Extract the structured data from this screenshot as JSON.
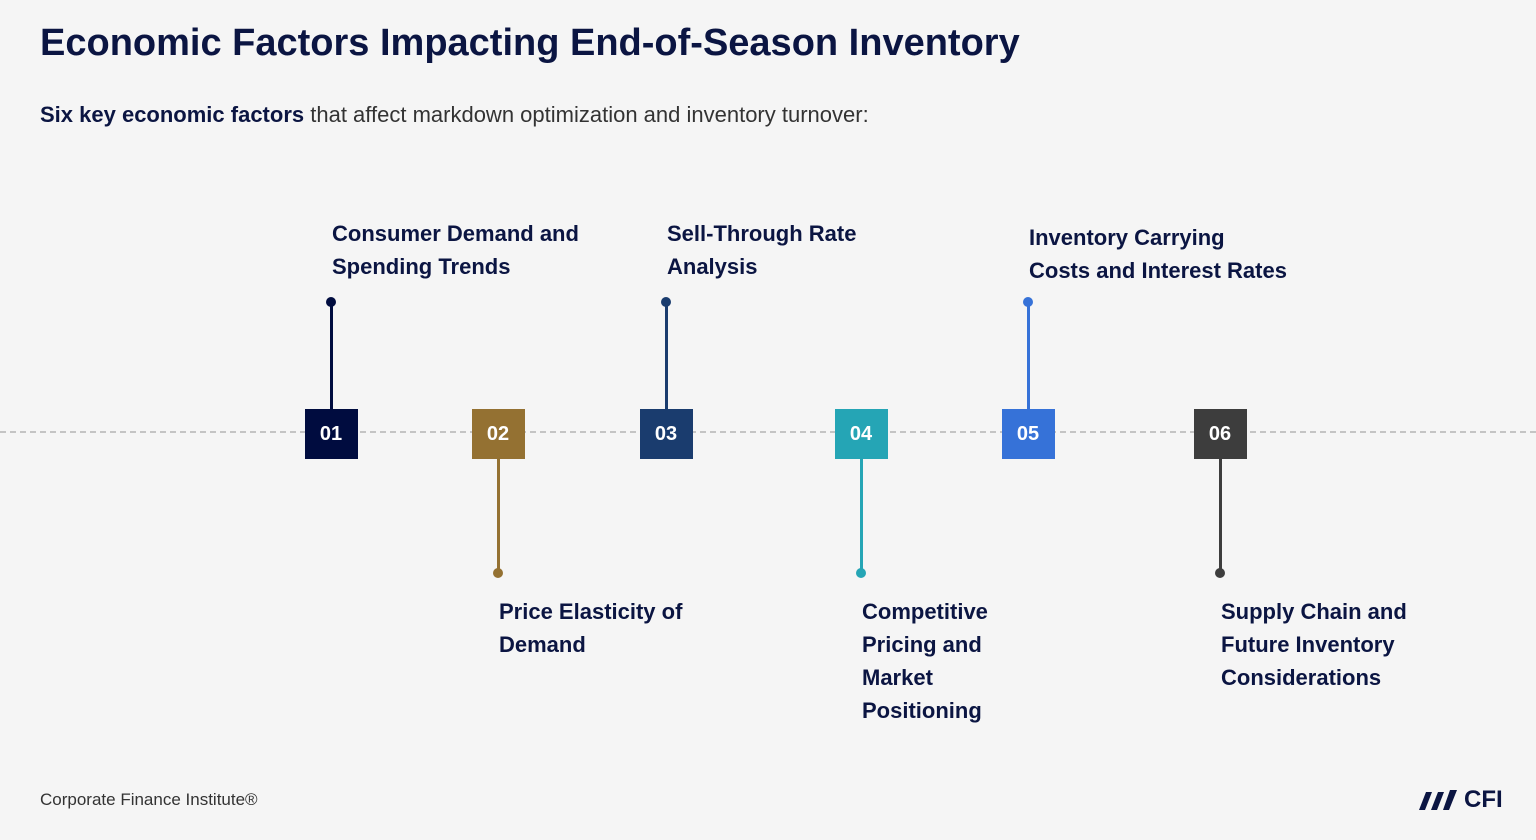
{
  "title": "Economic Factors Impacting End-of-Season Inventory",
  "subtitle": {
    "bold": "Six key economic factors",
    "rest": " that affect markdown optimization and inventory turnover:"
  },
  "factors": [
    {
      "number": "01",
      "label": "Consumer Demand and\nSpending Trends",
      "color": "#000c3f",
      "position": "above"
    },
    {
      "number": "02",
      "label": "Price Elasticity of\nDemand",
      "color": "#947132",
      "position": "below"
    },
    {
      "number": "03",
      "label": "Sell-Through Rate\nAnalysis",
      "color": "#1a3c6e",
      "position": "above"
    },
    {
      "number": "04",
      "label": "Competitive\nPricing and\nMarket\nPositioning",
      "color": "#25a5b5",
      "position": "below"
    },
    {
      "number": "05",
      "label": "Inventory Carrying\nCosts and Interest Rates",
      "color": "#3672d8",
      "position": "above"
    },
    {
      "number": "06",
      "label": "Supply Chain and\nFuture Inventory\nConsiderations",
      "color": "#3d3d3d",
      "position": "below"
    }
  ],
  "footer": "Corporate Finance Institute®",
  "logo": {
    "text": "CFI",
    "tm": "™"
  }
}
